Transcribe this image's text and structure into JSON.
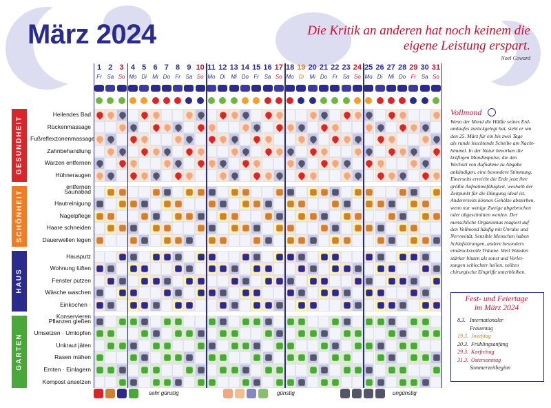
{
  "title": "März 2024",
  "quote": {
    "text": "Die Kritik an anderen hat noch keinem die eigene Leistung erspart.",
    "author": "Noel Coward"
  },
  "days": [
    {
      "n": "1",
      "wd": "Fr",
      "c": ""
    },
    {
      "n": "2",
      "wd": "Sa",
      "c": ""
    },
    {
      "n": "3",
      "wd": "So",
      "c": "red"
    },
    {
      "n": "4",
      "wd": "Mo",
      "c": ""
    },
    {
      "n": "5",
      "wd": "Di",
      "c": ""
    },
    {
      "n": "6",
      "wd": "Mi",
      "c": ""
    },
    {
      "n": "7",
      "wd": "Do",
      "c": ""
    },
    {
      "n": "8",
      "wd": "Fr",
      "c": ""
    },
    {
      "n": "9",
      "wd": "Sa",
      "c": ""
    },
    {
      "n": "10",
      "wd": "So",
      "c": "red"
    },
    {
      "n": "11",
      "wd": "Mo",
      "c": ""
    },
    {
      "n": "12",
      "wd": "Di",
      "c": ""
    },
    {
      "n": "13",
      "wd": "Mi",
      "c": ""
    },
    {
      "n": "14",
      "wd": "Do",
      "c": ""
    },
    {
      "n": "15",
      "wd": "Fr",
      "c": ""
    },
    {
      "n": "16",
      "wd": "Sa",
      "c": ""
    },
    {
      "n": "17",
      "wd": "So",
      "c": "red"
    },
    {
      "n": "18",
      "wd": "Mo",
      "c": ""
    },
    {
      "n": "19",
      "wd": "Di",
      "c": "orange"
    },
    {
      "n": "20",
      "wd": "Mi",
      "c": ""
    },
    {
      "n": "21",
      "wd": "Do",
      "c": ""
    },
    {
      "n": "22",
      "wd": "Fr",
      "c": ""
    },
    {
      "n": "23",
      "wd": "Sa",
      "c": ""
    },
    {
      "n": "24",
      "wd": "So",
      "c": "red"
    },
    {
      "n": "25",
      "wd": "Mo",
      "c": ""
    },
    {
      "n": "26",
      "wd": "Di",
      "c": ""
    },
    {
      "n": "27",
      "wd": "Mi",
      "c": ""
    },
    {
      "n": "28",
      "wd": "Do",
      "c": ""
    },
    {
      "n": "29",
      "wd": "Fr",
      "c": "red"
    },
    {
      "n": "30",
      "wd": "Sa",
      "c": ""
    },
    {
      "n": "31",
      "wd": "So",
      "c": "red"
    }
  ],
  "categories": [
    {
      "name": "GESUNDHEIT",
      "color": "#d9262b",
      "rows": [
        "Heilendes Bad",
        "Rückenmassage",
        "Fußreflexzonenmassage",
        "Zahnbehandlung",
        "Warzen entfernen",
        "Hühneraugen entfernen"
      ]
    },
    {
      "name": "SCHÖNHEIT",
      "color": "#f07c24",
      "rows": [
        "Saunabad",
        "Hautreinigung",
        "Nagelpflege",
        "Haare schneiden",
        "Dauerwellen legen"
      ]
    },
    {
      "name": "HAUS",
      "color": "#2b2b8c",
      "rows": [
        "Hausputz",
        "Wohnung lüften",
        "Fenster putzen",
        "Wäsche waschen",
        "Einkochen · Konservieren"
      ]
    },
    {
      "name": "GARTEN",
      "color": "#4aa83a",
      "rows": [
        "Pflanzen gießen",
        "Umsetzen · Umtopfen",
        "Unkraut jäten",
        "Rasen mähen",
        "Ernten · Einlagern",
        "Kompost ansetzen"
      ]
    }
  ],
  "vollmond": {
    "title": "Vollmond",
    "text": [
      "Wenn der Mond die Hälfte seines Erd-",
      "umlaufes zurückgelegt hat, steht er um",
      "den 25. März für ein bis zwei Tage",
      "als runde leuchtende Scheibe am Nacht-",
      "himmel. In der Natur bewirken die",
      "kräftigen Mondimpulse, die den",
      "Wechsel von Aufnahme zu Abgabe",
      "ankündigen, eine besondere Stimmung.",
      "Einerseits erreicht die Erde jetzt ihre",
      "größte Aufnahmefähigkeit, weshalb der",
      "Zeitpunkt für die Düngung ideal ist.",
      "Andererseits können Gehölze absterben,",
      "wenn nur wenige Zweige abgebrochen",
      "oder abgeschnitten werden. Der",
      "menschliche Organismus reagiert auf",
      "den Vollmond häufig mit Unruhe und",
      "Nervosität. Sensible Menschen haben",
      "Schlafstörungen, andere besonders",
      "eindrucksvolle Träume. Weil Wunden",
      "stärker bluten als sonst und Verlet-",
      "zungen schlechter heilen, sollten",
      "chirurgische Eingriffe unterbleiben."
    ]
  },
  "holidays": {
    "title": [
      "Fest- und Feiertage",
      "im März 2024"
    ],
    "items": [
      {
        "t": "8.3.   Internationaler",
        "c": ""
      },
      {
        "t": "         Frauentag",
        "c": ""
      },
      {
        "t": "19.3.  Josefitag",
        "c": "orange"
      },
      {
        "t": "20.3.  Frühlingsanfang",
        "c": ""
      },
      {
        "t": "29.3.  Karfreitag",
        "c": "red"
      },
      {
        "t": "31.3.  Ostersonntag",
        "c": "red"
      },
      {
        "t": "         Sommerzeitbeginn",
        "c": ""
      }
    ]
  },
  "legend": {
    "great": "sehr günstig",
    "mid": "günstig",
    "bad": "ungünstig"
  },
  "colors": {
    "red": "#c8102e",
    "navy": "#2b2b8c",
    "green": "#4aa83a",
    "orange": "#f07c24"
  }
}
